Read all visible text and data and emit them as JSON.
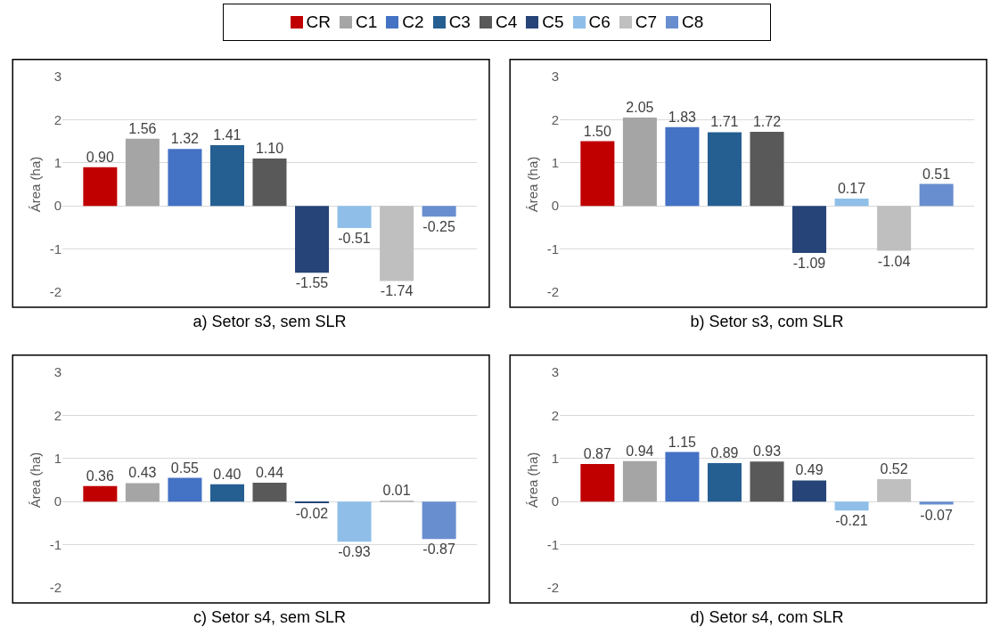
{
  "chart_data": [
    {
      "type": "bar",
      "xlabel": "a) Setor s3, sem SLR",
      "ylabel": "Área (ha)",
      "categories": [
        null
      ],
      "ylim": [
        -2,
        3
      ],
      "yticks": [
        -2,
        -1,
        0,
        1,
        2,
        3
      ],
      "grid": "y",
      "legend": "top",
      "tick_labels": "y",
      "series": [
        {
          "name": "CR",
          "color": "#c00000",
          "values": [
            0.9
          ],
          "value_labels": [
            "0.90"
          ]
        },
        {
          "name": "C1",
          "color": "#a5a5a5",
          "values": [
            1.56
          ],
          "value_labels": [
            "1.56"
          ]
        },
        {
          "name": "C2",
          "color": "#4472c4",
          "values": [
            1.32
          ],
          "value_labels": [
            "1.32"
          ]
        },
        {
          "name": "C3",
          "color": "#255e91",
          "values": [
            1.41
          ],
          "value_labels": [
            "1.41"
          ]
        },
        {
          "name": "C4",
          "color": "#595959",
          "values": [
            1.1
          ],
          "value_labels": [
            "1.10"
          ]
        },
        {
          "name": "C5",
          "color": "#264478",
          "values": [
            -1.55
          ],
          "value_labels": [
            "-1.55"
          ]
        },
        {
          "name": "C6",
          "color": "#8fbfe8",
          "values": [
            -0.51
          ],
          "value_labels": [
            "-0.51"
          ]
        },
        {
          "name": "C7",
          "color": "#bfbfbf",
          "values": [
            -1.74
          ],
          "value_labels": [
            "-1.74"
          ]
        },
        {
          "name": "C8",
          "color": "#698ed0",
          "values": [
            -0.25
          ],
          "value_labels": [
            "-0.25"
          ]
        }
      ]
    },
    {
      "type": "bar",
      "xlabel": "b) Setor s3, com SLR",
      "ylabel": "Área (ha)",
      "categories": [
        null
      ],
      "ylim": [
        -2,
        3
      ],
      "yticks": [
        -2,
        -1,
        0,
        1,
        2,
        3
      ],
      "grid": "y",
      "tick_labels": "y",
      "series": [
        {
          "color": "#c00000",
          "values": [
            1.5
          ],
          "value_labels": [
            "1.50"
          ]
        },
        {
          "color": "#a5a5a5",
          "values": [
            2.05
          ],
          "value_labels": [
            "2.05"
          ]
        },
        {
          "color": "#4472c4",
          "values": [
            1.83
          ],
          "value_labels": [
            "1.83"
          ]
        },
        {
          "color": "#255e91",
          "values": [
            1.71
          ],
          "value_labels": [
            "1.71"
          ]
        },
        {
          "color": "#595959",
          "values": [
            1.72
          ],
          "value_labels": [
            "1.72"
          ]
        },
        {
          "color": "#264478",
          "values": [
            -1.09
          ],
          "value_labels": [
            "-1.09"
          ]
        },
        {
          "color": "#8fbfe8",
          "values": [
            0.17
          ],
          "value_labels": [
            "0.17"
          ]
        },
        {
          "color": "#bfbfbf",
          "values": [
            -1.04
          ],
          "value_labels": [
            "-1.04"
          ]
        },
        {
          "color": "#698ed0",
          "values": [
            0.51
          ],
          "value_labels": [
            "0.51"
          ]
        }
      ]
    },
    {
      "type": "bar",
      "xlabel": "c) Setor s4, sem SLR",
      "ylabel": "Área (ha)",
      "categories": [
        null
      ],
      "ylim": [
        -2,
        3
      ],
      "yticks": [
        -2,
        -1,
        0,
        1,
        2,
        3
      ],
      "grid": "y",
      "tick_labels": "y",
      "series": [
        {
          "color": "#c00000",
          "values": [
            0.36
          ],
          "value_labels": [
            "0.36"
          ]
        },
        {
          "color": "#a5a5a5",
          "values": [
            0.43
          ],
          "value_labels": [
            "0.43"
          ]
        },
        {
          "color": "#4472c4",
          "values": [
            0.55
          ],
          "value_labels": [
            "0.55"
          ]
        },
        {
          "color": "#255e91",
          "values": [
            0.4
          ],
          "value_labels": [
            "0.40"
          ]
        },
        {
          "color": "#595959",
          "values": [
            0.44
          ],
          "value_labels": [
            "0.44"
          ]
        },
        {
          "color": "#264478",
          "values": [
            -0.02
          ],
          "value_labels": [
            "-0.02"
          ]
        },
        {
          "color": "#8fbfe8",
          "values": [
            -0.93
          ],
          "value_labels": [
            "-0.93"
          ]
        },
        {
          "color": "#bfbfbf",
          "values": [
            0.01
          ],
          "value_labels": [
            "0.01"
          ]
        },
        {
          "color": "#698ed0",
          "values": [
            -0.87
          ],
          "value_labels": [
            "-0.87"
          ]
        }
      ]
    },
    {
      "type": "bar",
      "xlabel": "d) Setor s4, com SLR",
      "ylabel": "Área (ha)",
      "categories": [
        null
      ],
      "ylim": [
        -2,
        3
      ],
      "yticks": [
        -2,
        -1,
        0,
        1,
        2,
        3
      ],
      "grid": "y",
      "tick_labels": "y",
      "series": [
        {
          "color": "#c00000",
          "values": [
            0.87
          ],
          "value_labels": [
            "0.87"
          ]
        },
        {
          "color": "#a5a5a5",
          "values": [
            0.94
          ],
          "value_labels": [
            "0.94"
          ]
        },
        {
          "color": "#4472c4",
          "values": [
            1.15
          ],
          "value_labels": [
            "1.15"
          ]
        },
        {
          "color": "#255e91",
          "values": [
            0.89
          ],
          "value_labels": [
            "0.89"
          ]
        },
        {
          "color": "#595959",
          "values": [
            0.93
          ],
          "value_labels": [
            "0.93"
          ]
        },
        {
          "color": "#264478",
          "values": [
            0.49
          ],
          "value_labels": [
            "0.49"
          ]
        },
        {
          "color": "#8fbfe8",
          "values": [
            -0.21
          ],
          "value_labels": [
            "-0.21"
          ]
        },
        {
          "color": "#bfbfbf",
          "values": [
            0.52
          ],
          "value_labels": [
            "0.52"
          ]
        },
        {
          "color": "#698ed0",
          "values": [
            -0.07
          ],
          "value_labels": [
            "-0.07"
          ]
        }
      ]
    }
  ]
}
